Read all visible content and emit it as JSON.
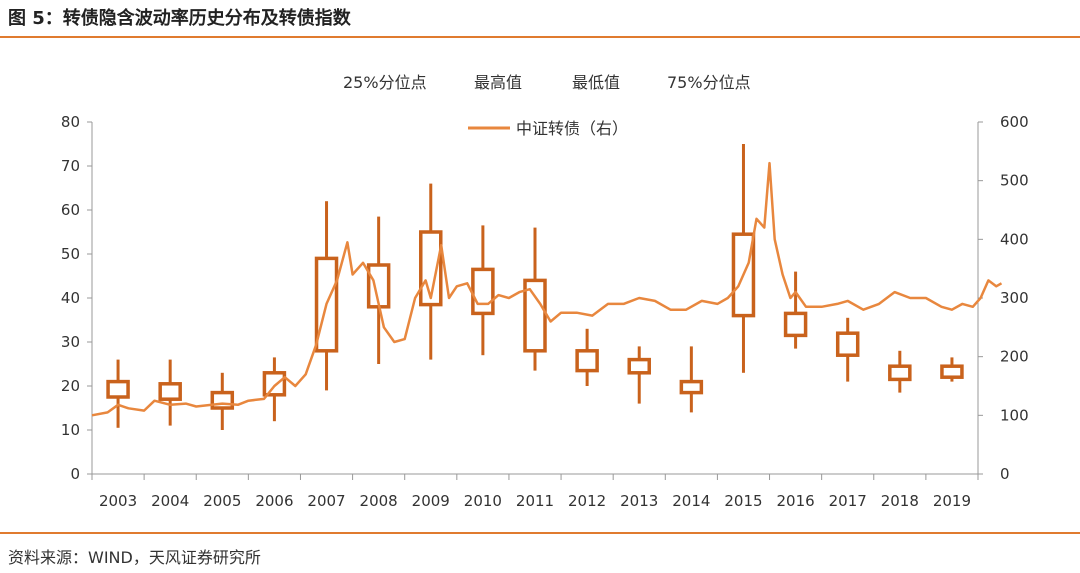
{
  "header": {
    "title": "图 5：转债隐含波动率历史分布及转债指数"
  },
  "footer": {
    "source": "资料来源：WIND，天风证券研究所"
  },
  "chart_data": {
    "type": "box",
    "legend_top": [
      "25%分位点",
      "最高值",
      "最低值",
      "75%分位点"
    ],
    "line_series_name": "中证转债（右）",
    "categories": [
      "2003",
      "2004",
      "2005",
      "2006",
      "2007",
      "2008",
      "2009",
      "2010",
      "2011",
      "2012",
      "2013",
      "2014",
      "2015",
      "2016",
      "2017",
      "2018",
      "2019"
    ],
    "left_axis": {
      "ylim": [
        0,
        80
      ],
      "ticks": [
        0,
        10,
        20,
        30,
        40,
        50,
        60,
        70,
        80
      ]
    },
    "right_axis": {
      "ylim": [
        0,
        600
      ],
      "ticks": [
        0,
        100,
        200,
        300,
        400,
        500,
        600
      ]
    },
    "box_series": [
      {
        "q25": 17.5,
        "q75": 21.0,
        "min": 10.5,
        "max": 26.0
      },
      {
        "q25": 17.0,
        "q75": 20.5,
        "min": 11.0,
        "max": 26.0
      },
      {
        "q25": 15.0,
        "q75": 18.5,
        "min": 10.0,
        "max": 23.0
      },
      {
        "q25": 18.0,
        "q75": 23.0,
        "min": 12.0,
        "max": 26.5
      },
      {
        "q25": 28.0,
        "q75": 49.0,
        "min": 19.0,
        "max": 62.0
      },
      {
        "q25": 38.0,
        "q75": 47.5,
        "min": 25.0,
        "max": 58.5
      },
      {
        "q25": 38.5,
        "q75": 55.0,
        "min": 26.0,
        "max": 66.0
      },
      {
        "q25": 36.5,
        "q75": 46.5,
        "min": 27.0,
        "max": 56.5
      },
      {
        "q25": 28.0,
        "q75": 44.0,
        "min": 23.5,
        "max": 56.0
      },
      {
        "q25": 23.5,
        "q75": 28.0,
        "min": 20.0,
        "max": 33.0
      },
      {
        "q25": 23.0,
        "q75": 26.0,
        "min": 16.0,
        "max": 29.0
      },
      {
        "q25": 18.5,
        "q75": 21.0,
        "min": 14.0,
        "max": 29.0
      },
      {
        "q25": 36.0,
        "q75": 54.5,
        "min": 23.0,
        "max": 75.0
      },
      {
        "q25": 31.5,
        "q75": 36.5,
        "min": 28.5,
        "max": 46.0
      },
      {
        "q25": 27.0,
        "q75": 32.0,
        "min": 21.0,
        "max": 35.5
      },
      {
        "q25": 21.5,
        "q75": 24.5,
        "min": 18.5,
        "max": 28.0
      },
      {
        "q25": 22.0,
        "q75": 24.5,
        "min": 21.0,
        "max": 26.5
      }
    ],
    "line_series": {
      "name": "中证转债（右）",
      "x": [
        2002.5,
        2002.8,
        2003.0,
        2003.2,
        2003.5,
        2003.7,
        2004.0,
        2004.3,
        2004.5,
        2004.8,
        2005.0,
        2005.3,
        2005.5,
        2005.8,
        2006.0,
        2006.2,
        2006.4,
        2006.6,
        2006.8,
        2007.0,
        2007.2,
        2007.4,
        2007.5,
        2007.7,
        2007.9,
        2008.1,
        2008.3,
        2008.5,
        2008.7,
        2008.9,
        2009.0,
        2009.2,
        2009.35,
        2009.5,
        2009.7,
        2009.9,
        2010.1,
        2010.3,
        2010.5,
        2010.7,
        2010.9,
        2011.1,
        2011.3,
        2011.5,
        2011.8,
        2012.1,
        2012.4,
        2012.7,
        2013.0,
        2013.3,
        2013.6,
        2013.9,
        2014.2,
        2014.5,
        2014.7,
        2014.9,
        2015.1,
        2015.25,
        2015.4,
        2015.5,
        2015.6,
        2015.75,
        2015.9,
        2016.0,
        2016.2,
        2016.5,
        2016.8,
        2017.0,
        2017.3,
        2017.6,
        2017.9,
        2018.2,
        2018.5,
        2018.8,
        2019.0,
        2019.2,
        2019.4,
        2019.55,
        2019.7,
        2019.85,
        2019.95
      ],
      "y": [
        100,
        105,
        118,
        112,
        108,
        125,
        118,
        120,
        115,
        118,
        120,
        118,
        125,
        128,
        150,
        165,
        150,
        170,
        220,
        290,
        330,
        395,
        340,
        360,
        330,
        250,
        225,
        230,
        300,
        330,
        300,
        390,
        300,
        320,
        325,
        290,
        290,
        305,
        300,
        310,
        315,
        290,
        260,
        275,
        275,
        270,
        290,
        290,
        300,
        295,
        280,
        280,
        295,
        290,
        300,
        320,
        360,
        435,
        420,
        530,
        400,
        340,
        300,
        310,
        285,
        285,
        290,
        295,
        280,
        290,
        310,
        300,
        300,
        285,
        280,
        290,
        285,
        300,
        330,
        320,
        325
      ]
    },
    "colors": {
      "box": "#c9621c",
      "line": "#e8873e"
    }
  }
}
